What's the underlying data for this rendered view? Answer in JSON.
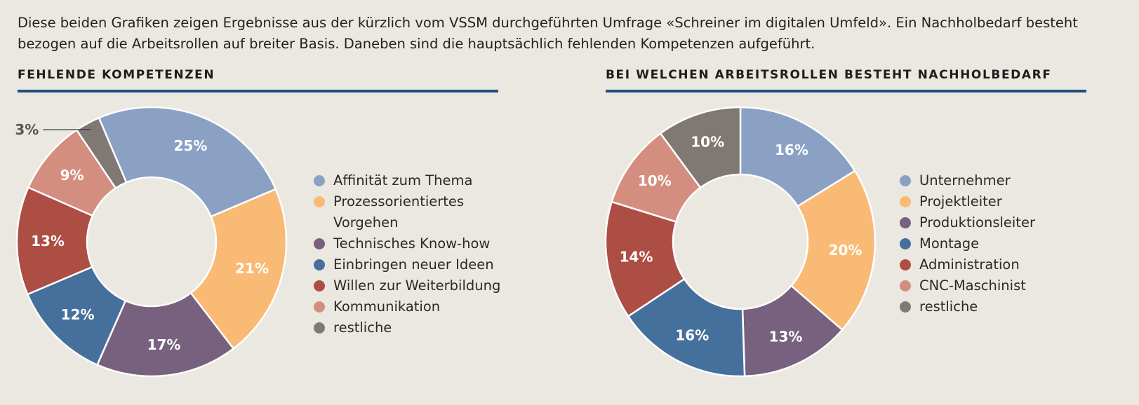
{
  "intro_text": "Diese beiden Grafiken zeigen Ergebnisse aus der kürzlich vom VSSM durchgeführten Umfrage «Schreiner im digitalen Umfeld». Ein Nachholbedarf besteht bezogen auf die Arbeitsrollen auf breiter Basis. Daneben sind die hauptsächlich fehlenden Kompetenzen aufgeführt.",
  "colors": {
    "rule": "#1f4e85",
    "background": "#ebe8e1"
  },
  "chart_data": [
    {
      "type": "pie",
      "donut": true,
      "title": "FEHLENDE KOMPETENZEN",
      "legend_position": "right",
      "slices": [
        {
          "label": "Affinität zum Thema",
          "value": 25,
          "display": "25%",
          "color": "#8aa1c4"
        },
        {
          "label": "Prozessorientiertes Vorgehen",
          "value": 21,
          "display": "21%",
          "color": "#f9ba75"
        },
        {
          "label": "Technisches Know-how",
          "value": 17,
          "display": "17%",
          "color": "#78617e"
        },
        {
          "label": "Einbringen neuer Ideen",
          "value": 12,
          "display": "12%",
          "color": "#46709c"
        },
        {
          "label": "Willen zur Weiterbildung",
          "value": 13,
          "display": "13%",
          "color": "#ad4e45"
        },
        {
          "label": "Kommunikation",
          "value": 9,
          "display": "9%",
          "color": "#d48e80"
        },
        {
          "label": "restliche",
          "value": 3,
          "display": "3%",
          "color": "#807872",
          "label_outside": true
        }
      ]
    },
    {
      "type": "pie",
      "donut": true,
      "title": "BEI WELCHEN ARBEITSROLLEN BESTEHT NACHHOLBEDARF",
      "legend_position": "right",
      "slices": [
        {
          "label": "Unternehmer",
          "value": 16,
          "display": "16%",
          "color": "#8aa1c4"
        },
        {
          "label": "Projektleiter",
          "value": 20,
          "display": "20%",
          "color": "#f9ba75"
        },
        {
          "label": "Produktionsleiter",
          "value": 13,
          "display": "13%",
          "color": "#78617e"
        },
        {
          "label": "Montage",
          "value": 16,
          "display": "16%",
          "color": "#46709c"
        },
        {
          "label": "Administration",
          "value": 14,
          "display": "14%",
          "color": "#ad4e45"
        },
        {
          "label": "CNC-Maschinist",
          "value": 10,
          "display": "10%",
          "color": "#d48e80"
        },
        {
          "label": "restliche",
          "value": 10,
          "display": "10%",
          "color": "#807872"
        }
      ]
    }
  ]
}
